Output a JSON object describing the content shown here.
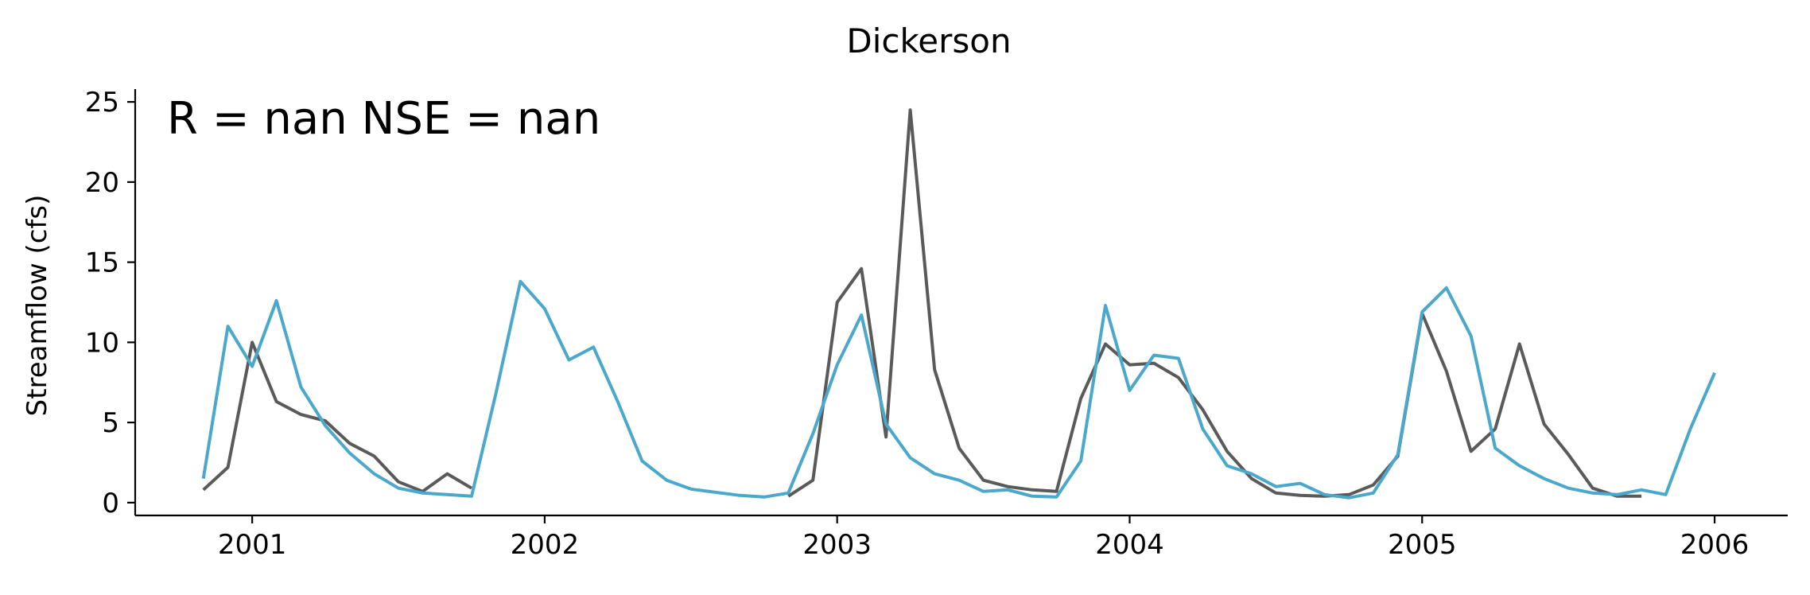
{
  "chart_data": {
    "type": "line",
    "title": "Dickerson",
    "xlabel": "",
    "ylabel": "Streamflow (cfs)",
    "annotation": "R = nan  NSE = nan",
    "xlim": [
      2000.6,
      2006.25
    ],
    "ylim": [
      -0.8,
      25.8
    ],
    "x_ticks": [
      2001,
      2002,
      2003,
      2004,
      2005,
      2006
    ],
    "x_tick_labels": [
      "2001",
      "2002",
      "2003",
      "2004",
      "2005",
      "2006"
    ],
    "y_ticks": [
      0,
      5,
      10,
      15,
      20,
      25
    ],
    "y_tick_labels": [
      "0",
      "5",
      "10",
      "15",
      "20",
      "25"
    ],
    "grid": false,
    "series": [
      {
        "color": "#5a5a5a",
        "points": [
          [
            2000.833,
            0.8
          ],
          [
            2000.917,
            2.2
          ],
          [
            2001.0,
            10.0
          ],
          [
            2001.083,
            6.3
          ],
          [
            2001.167,
            5.5
          ],
          [
            2001.25,
            5.1
          ],
          [
            2001.333,
            3.7
          ],
          [
            2001.417,
            2.9
          ],
          [
            2001.5,
            1.3
          ],
          [
            2001.583,
            0.7
          ],
          [
            2001.667,
            1.8
          ],
          [
            2001.75,
            0.9
          ],
          null,
          [
            2002.833,
            0.4
          ],
          [
            2002.917,
            1.4
          ],
          [
            2003.0,
            12.5
          ],
          [
            2003.083,
            14.6
          ],
          [
            2003.167,
            4.1
          ],
          [
            2003.25,
            24.5
          ],
          [
            2003.333,
            8.3
          ],
          [
            2003.417,
            3.4
          ],
          [
            2003.5,
            1.4
          ],
          [
            2003.583,
            1.0
          ],
          [
            2003.667,
            0.8
          ],
          [
            2003.75,
            0.7
          ],
          [
            2003.833,
            6.5
          ],
          [
            2003.917,
            9.9
          ],
          [
            2004.0,
            8.6
          ],
          [
            2004.083,
            8.7
          ],
          [
            2004.167,
            7.8
          ],
          [
            2004.25,
            5.8
          ],
          [
            2004.333,
            3.2
          ],
          [
            2004.417,
            1.5
          ],
          [
            2004.5,
            0.6
          ],
          [
            2004.583,
            0.45
          ],
          [
            2004.667,
            0.4
          ],
          [
            2004.75,
            0.5
          ],
          [
            2004.833,
            1.1
          ],
          [
            2004.917,
            2.9
          ],
          [
            2005.0,
            11.8
          ],
          [
            2005.083,
            8.2
          ],
          [
            2005.167,
            3.2
          ],
          [
            2005.25,
            4.6
          ],
          [
            2005.333,
            9.9
          ],
          [
            2005.417,
            4.9
          ],
          [
            2005.5,
            3.0
          ],
          [
            2005.583,
            0.9
          ],
          [
            2005.667,
            0.4
          ],
          [
            2005.75,
            0.4
          ]
        ]
      },
      {
        "color": "#4aa8cc",
        "points": [
          [
            2000.833,
            1.5
          ],
          [
            2000.917,
            11.0
          ],
          [
            2001.0,
            8.5
          ],
          [
            2001.083,
            12.6
          ],
          [
            2001.167,
            7.2
          ],
          [
            2001.25,
            4.8
          ],
          [
            2001.333,
            3.1
          ],
          [
            2001.417,
            1.8
          ],
          [
            2001.5,
            0.9
          ],
          [
            2001.583,
            0.6
          ],
          [
            2001.667,
            0.5
          ],
          [
            2001.75,
            0.4
          ],
          [
            2001.833,
            6.8
          ],
          [
            2001.917,
            13.8
          ],
          [
            2002.0,
            12.1
          ],
          [
            2002.083,
            8.9
          ],
          [
            2002.167,
            9.7
          ],
          [
            2002.25,
            6.3
          ],
          [
            2002.333,
            2.6
          ],
          [
            2002.417,
            1.4
          ],
          [
            2002.5,
            0.85
          ],
          [
            2002.583,
            0.65
          ],
          [
            2002.667,
            0.45
          ],
          [
            2002.75,
            0.35
          ],
          [
            2002.833,
            0.6
          ],
          [
            2002.917,
            4.3
          ],
          [
            2003.0,
            8.6
          ],
          [
            2003.083,
            11.7
          ],
          [
            2003.167,
            4.9
          ],
          [
            2003.25,
            2.8
          ],
          [
            2003.333,
            1.8
          ],
          [
            2003.417,
            1.4
          ],
          [
            2003.5,
            0.7
          ],
          [
            2003.583,
            0.8
          ],
          [
            2003.667,
            0.4
          ],
          [
            2003.75,
            0.35
          ],
          [
            2003.833,
            2.6
          ],
          [
            2003.917,
            12.3
          ],
          [
            2004.0,
            7.0
          ],
          [
            2004.083,
            9.2
          ],
          [
            2004.167,
            9.0
          ],
          [
            2004.25,
            4.6
          ],
          [
            2004.333,
            2.3
          ],
          [
            2004.417,
            1.8
          ],
          [
            2004.5,
            1.0
          ],
          [
            2004.583,
            1.2
          ],
          [
            2004.667,
            0.5
          ],
          [
            2004.75,
            0.3
          ],
          [
            2004.833,
            0.6
          ],
          [
            2004.917,
            3.0
          ],
          [
            2005.0,
            11.9
          ],
          [
            2005.083,
            13.4
          ],
          [
            2005.167,
            10.4
          ],
          [
            2005.25,
            3.4
          ],
          [
            2005.333,
            2.3
          ],
          [
            2005.417,
            1.5
          ],
          [
            2005.5,
            0.9
          ],
          [
            2005.583,
            0.6
          ],
          [
            2005.667,
            0.5
          ],
          [
            2005.75,
            0.8
          ],
          [
            2005.833,
            0.5
          ],
          [
            2005.917,
            4.6
          ],
          [
            2006.0,
            8.1
          ]
        ]
      }
    ]
  }
}
